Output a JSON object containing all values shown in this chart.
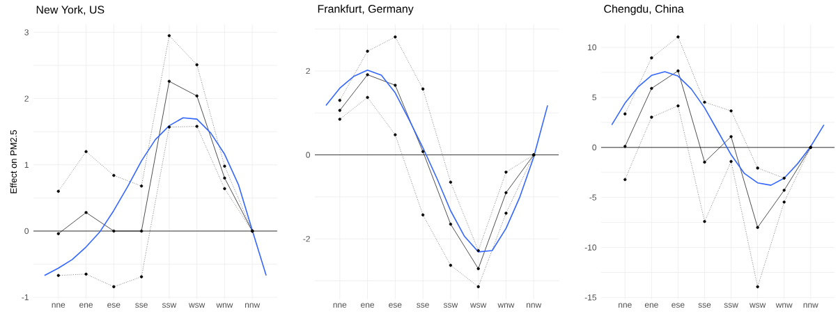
{
  "chart_data": [
    {
      "type": "line",
      "title": "New York, US",
      "ylabel": "Effect on PM2.5",
      "categories": [
        null,
        "nne",
        null,
        "ene",
        null,
        "ese",
        null,
        "sse",
        null,
        "ssw",
        null,
        "wsw",
        null,
        "wnw",
        null,
        "nnw",
        null
      ],
      "ylim": [
        -1.03,
        3.12
      ],
      "yticks": [
        -1,
        {
          "value": -0.5,
          "label": null
        },
        0,
        {
          "value": 0.5,
          "label": null
        },
        1,
        {
          "value": 1.5,
          "label": null
        },
        2,
        {
          "value": 2.5,
          "label": null
        },
        3
      ],
      "grid": true,
      "ref_lines": [
        {
          "axis": "y",
          "value": 0,
          "color": "#000000"
        }
      ],
      "series": [
        {
          "color": "#000000",
          "marker": "circle",
          "line_style": "solid",
          "values": [
            null,
            -0.04,
            null,
            0.28,
            null,
            0,
            null,
            0,
            null,
            2.26,
            null,
            2.04,
            null,
            0.8,
            null,
            0,
            null
          ]
        },
        {
          "color": "#000000",
          "marker": "circle",
          "line_style": "dotted",
          "values": [
            null,
            0.6,
            null,
            1.2,
            null,
            0.84,
            null,
            0.68,
            null,
            2.95,
            null,
            2.51,
            null,
            0.98,
            null,
            0,
            null
          ]
        },
        {
          "color": "#000000",
          "marker": "circle",
          "line_style": "dotted",
          "values": [
            null,
            -0.67,
            null,
            -0.65,
            null,
            -0.84,
            null,
            -0.69,
            null,
            1.57,
            null,
            1.58,
            null,
            0.64,
            null,
            0,
            null
          ]
        },
        {
          "color": "#3366ff",
          "marker": "none",
          "line_style": "solid",
          "values": [
            -0.67,
            -0.56,
            -0.43,
            -0.24,
            -0.01,
            0.31,
            0.67,
            1.06,
            1.38,
            1.59,
            1.71,
            1.69,
            1.48,
            1.16,
            0.7,
            0.01,
            -0.67
          ]
        }
      ]
    },
    {
      "type": "line",
      "title": "Frankfurt, Germany",
      "categories": [
        null,
        "nne",
        null,
        "ene",
        null,
        "ese",
        null,
        "sse",
        null,
        "ssw",
        null,
        "wsw",
        null,
        "wnw",
        null,
        "nnw",
        null
      ],
      "ylim": [
        -3.44,
        3.11
      ],
      "yticks": [
        {
          "value": -3,
          "label": null
        },
        -2,
        {
          "value": -1,
          "label": null
        },
        0,
        {
          "value": 1,
          "label": null
        },
        2,
        {
          "value": 3,
          "label": null
        }
      ],
      "grid": true,
      "ref_lines": [
        {
          "axis": "y",
          "value": 0,
          "color": "#000000"
        }
      ],
      "series": [
        {
          "color": "#000000",
          "marker": "circle",
          "line_style": "solid",
          "values": [
            null,
            1.06,
            null,
            1.91,
            null,
            1.66,
            null,
            0.08,
            null,
            -1.65,
            null,
            -2.71,
            null,
            -0.9,
            null,
            0,
            null
          ]
        },
        {
          "color": "#000000",
          "marker": "circle",
          "line_style": "dotted",
          "values": [
            null,
            1.3,
            null,
            2.47,
            null,
            2.81,
            null,
            1.57,
            null,
            -0.65,
            null,
            -2.28,
            null,
            -0.41,
            null,
            0,
            null
          ]
        },
        {
          "color": "#000000",
          "marker": "circle",
          "line_style": "dotted",
          "values": [
            null,
            0.85,
            null,
            1.37,
            null,
            0.48,
            null,
            -1.43,
            null,
            -2.63,
            null,
            -3.14,
            null,
            -1.39,
            null,
            0,
            null
          ]
        },
        {
          "color": "#3366ff",
          "marker": "none",
          "line_style": "solid",
          "values": [
            1.18,
            1.59,
            1.87,
            2.02,
            1.9,
            1.48,
            0.84,
            0.17,
            -0.55,
            -1.33,
            -1.94,
            -2.31,
            -2.28,
            -1.75,
            -1.0,
            -0.05,
            1.18
          ]
        }
      ]
    },
    {
      "type": "line",
      "title": "Chengdu, China",
      "categories": [
        null,
        "nne",
        null,
        "ene",
        null,
        "ese",
        null,
        "sse",
        null,
        "ssw",
        null,
        "wsw",
        null,
        "wnw",
        null,
        "nnw",
        null
      ],
      "ylim": [
        -15.18,
        12.3
      ],
      "yticks": [
        -15,
        {
          "value": -12.5,
          "label": null
        },
        -10,
        {
          "value": -7.5,
          "label": null
        },
        -5,
        {
          "value": -2.5,
          "label": null
        },
        0,
        {
          "value": 2.5,
          "label": null
        },
        5,
        {
          "value": 7.5,
          "label": null
        },
        10
      ],
      "grid": true,
      "ref_lines": [
        {
          "axis": "y",
          "value": 0,
          "color": "#000000"
        }
      ],
      "series": [
        {
          "color": "#000000",
          "marker": "circle",
          "line_style": "solid",
          "values": [
            null,
            0.1,
            null,
            5.9,
            null,
            7.65,
            null,
            -1.47,
            null,
            1.08,
            null,
            -8.0,
            null,
            -4.28,
            null,
            0,
            null
          ]
        },
        {
          "color": "#000000",
          "marker": "circle",
          "line_style": "dotted",
          "values": [
            null,
            3.35,
            null,
            8.95,
            null,
            11.05,
            null,
            4.52,
            null,
            3.65,
            null,
            -2.06,
            null,
            -3.07,
            null,
            0,
            null
          ]
        },
        {
          "color": "#000000",
          "marker": "circle",
          "line_style": "dotted",
          "values": [
            null,
            -3.21,
            null,
            3.02,
            null,
            4.15,
            null,
            -7.4,
            null,
            -1.4,
            null,
            -13.93,
            null,
            -5.46,
            null,
            0,
            null
          ]
        },
        {
          "color": "#3366ff",
          "marker": "none",
          "line_style": "solid",
          "values": [
            2.25,
            4.43,
            6.07,
            7.2,
            7.57,
            7.13,
            5.84,
            3.96,
            1.62,
            -0.73,
            -2.6,
            -3.54,
            -3.78,
            -3.07,
            -1.67,
            0.09,
            2.25
          ]
        }
      ]
    }
  ]
}
